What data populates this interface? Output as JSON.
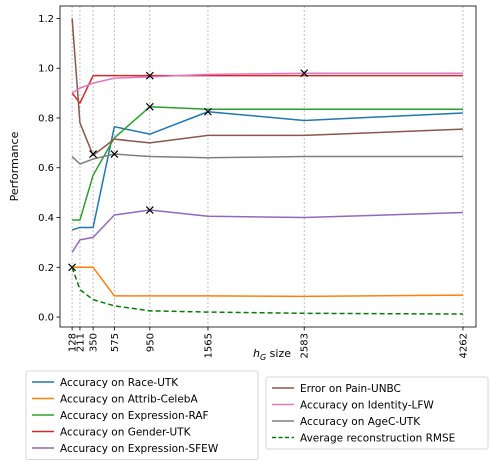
{
  "chart_data": {
    "type": "line",
    "title": "",
    "xlabel_prefix": "h",
    "xlabel_subscript": "G",
    "xlabel_suffix": " size",
    "ylabel": "Performance",
    "xlim": [
      0,
      4400
    ],
    "ylim": [
      -0.04,
      1.25
    ],
    "x_ticks": [
      128,
      211,
      350,
      575,
      950,
      1565,
      2583,
      4262
    ],
    "x_tick_labels": [
      "128",
      "211",
      "350",
      "575",
      "950",
      "1565",
      "2583",
      "4262"
    ],
    "y_ticks": [
      0.0,
      0.2,
      0.4,
      0.6,
      0.8,
      1.0,
      1.2
    ],
    "y_tick_labels": [
      "0.0",
      "0.2",
      "0.4",
      "0.6",
      "0.8",
      "1.0",
      "1.2"
    ],
    "grid": "vertical dotted lines at x ticks",
    "legend_left": [
      "Race-UTK",
      "Attrib-CelebA",
      "Expression-RAF",
      "Gender-UTK",
      "Expression-SFEW"
    ],
    "legend_right": [
      "Pain-UNBC",
      "Identity-LFW",
      "AgeC-UTK",
      "RMSE"
    ],
    "series": [
      {
        "key": "Race-UTK",
        "name": "Accuracy on Race-UTK",
        "color": "#1f77b4",
        "dashed": false,
        "x": [
          128,
          211,
          350,
          575,
          950,
          1565,
          2583,
          4262
        ],
        "y": [
          0.35,
          0.36,
          0.36,
          0.765,
          0.735,
          0.825,
          0.79,
          0.82
        ]
      },
      {
        "key": "Attrib-CelebA",
        "name": "Accuracy on Attrib-CelebA",
        "color": "#ff7f0e",
        "dashed": false,
        "x": [
          128,
          211,
          350,
          575,
          950,
          1565,
          2583,
          4262
        ],
        "y": [
          0.2,
          0.2,
          0.2,
          0.085,
          0.085,
          0.085,
          0.083,
          0.088
        ]
      },
      {
        "key": "Expression-RAF",
        "name": "Accuracy on Expression-RAF",
        "color": "#2ca02c",
        "dashed": false,
        "x": [
          128,
          211,
          350,
          575,
          950,
          1565,
          2583,
          4262
        ],
        "y": [
          0.39,
          0.39,
          0.57,
          0.72,
          0.845,
          0.835,
          0.835,
          0.835
        ]
      },
      {
        "key": "Gender-UTK",
        "name": "Accuracy on Gender-UTK",
        "color": "#d62728",
        "dashed": false,
        "x": [
          128,
          211,
          350,
          575,
          950,
          1565,
          2583,
          4262
        ],
        "y": [
          0.9,
          0.86,
          0.97,
          0.97,
          0.97,
          0.97,
          0.97,
          0.97
        ]
      },
      {
        "key": "Expression-SFEW",
        "name": "Accuracy on Expression-SFEW",
        "color": "#9467bd",
        "dashed": false,
        "x": [
          128,
          211,
          350,
          575,
          950,
          1565,
          2583,
          4262
        ],
        "y": [
          0.26,
          0.31,
          0.32,
          0.41,
          0.43,
          0.405,
          0.4,
          0.42
        ]
      },
      {
        "key": "Pain-UNBC",
        "name": "Error on Pain-UNBC",
        "color": "#8c564b",
        "dashed": false,
        "x": [
          128,
          211,
          350,
          575,
          950,
          1565,
          2583,
          4262
        ],
        "y": [
          1.2,
          0.78,
          0.65,
          0.715,
          0.7,
          0.73,
          0.73,
          0.755
        ]
      },
      {
        "key": "Identity-LFW",
        "name": "Accuracy on Identity-LFW",
        "color": "#e377c2",
        "dashed": false,
        "x": [
          128,
          211,
          350,
          575,
          950,
          1565,
          2583,
          4262
        ],
        "y": [
          0.9,
          0.92,
          0.94,
          0.96,
          0.965,
          0.975,
          0.98,
          0.98
        ]
      },
      {
        "key": "AgeC-UTK",
        "name": "Accuracy on AgeC-UTK",
        "color": "#7f7f7f",
        "dashed": false,
        "x": [
          128,
          211,
          350,
          575,
          950,
          1565,
          2583,
          4262
        ],
        "y": [
          0.645,
          0.615,
          0.635,
          0.655,
          0.645,
          0.64,
          0.645,
          0.645
        ]
      },
      {
        "key": "RMSE",
        "name": "Average reconstruction RMSE",
        "color": "#008000",
        "dashed": true,
        "x": [
          128,
          211,
          350,
          575,
          950,
          1565,
          2583,
          4262
        ],
        "y": [
          0.2,
          0.11,
          0.07,
          0.045,
          0.025,
          0.02,
          0.015,
          0.012
        ]
      }
    ],
    "markers": [
      {
        "x": 128,
        "y": 0.2
      },
      {
        "x": 350,
        "y": 0.655
      },
      {
        "x": 575,
        "y": 0.655
      },
      {
        "x": 950,
        "y": 0.97
      },
      {
        "x": 950,
        "y": 0.845
      },
      {
        "x": 950,
        "y": 0.43
      },
      {
        "x": 1565,
        "y": 0.825
      },
      {
        "x": 2583,
        "y": 0.98
      }
    ]
  }
}
